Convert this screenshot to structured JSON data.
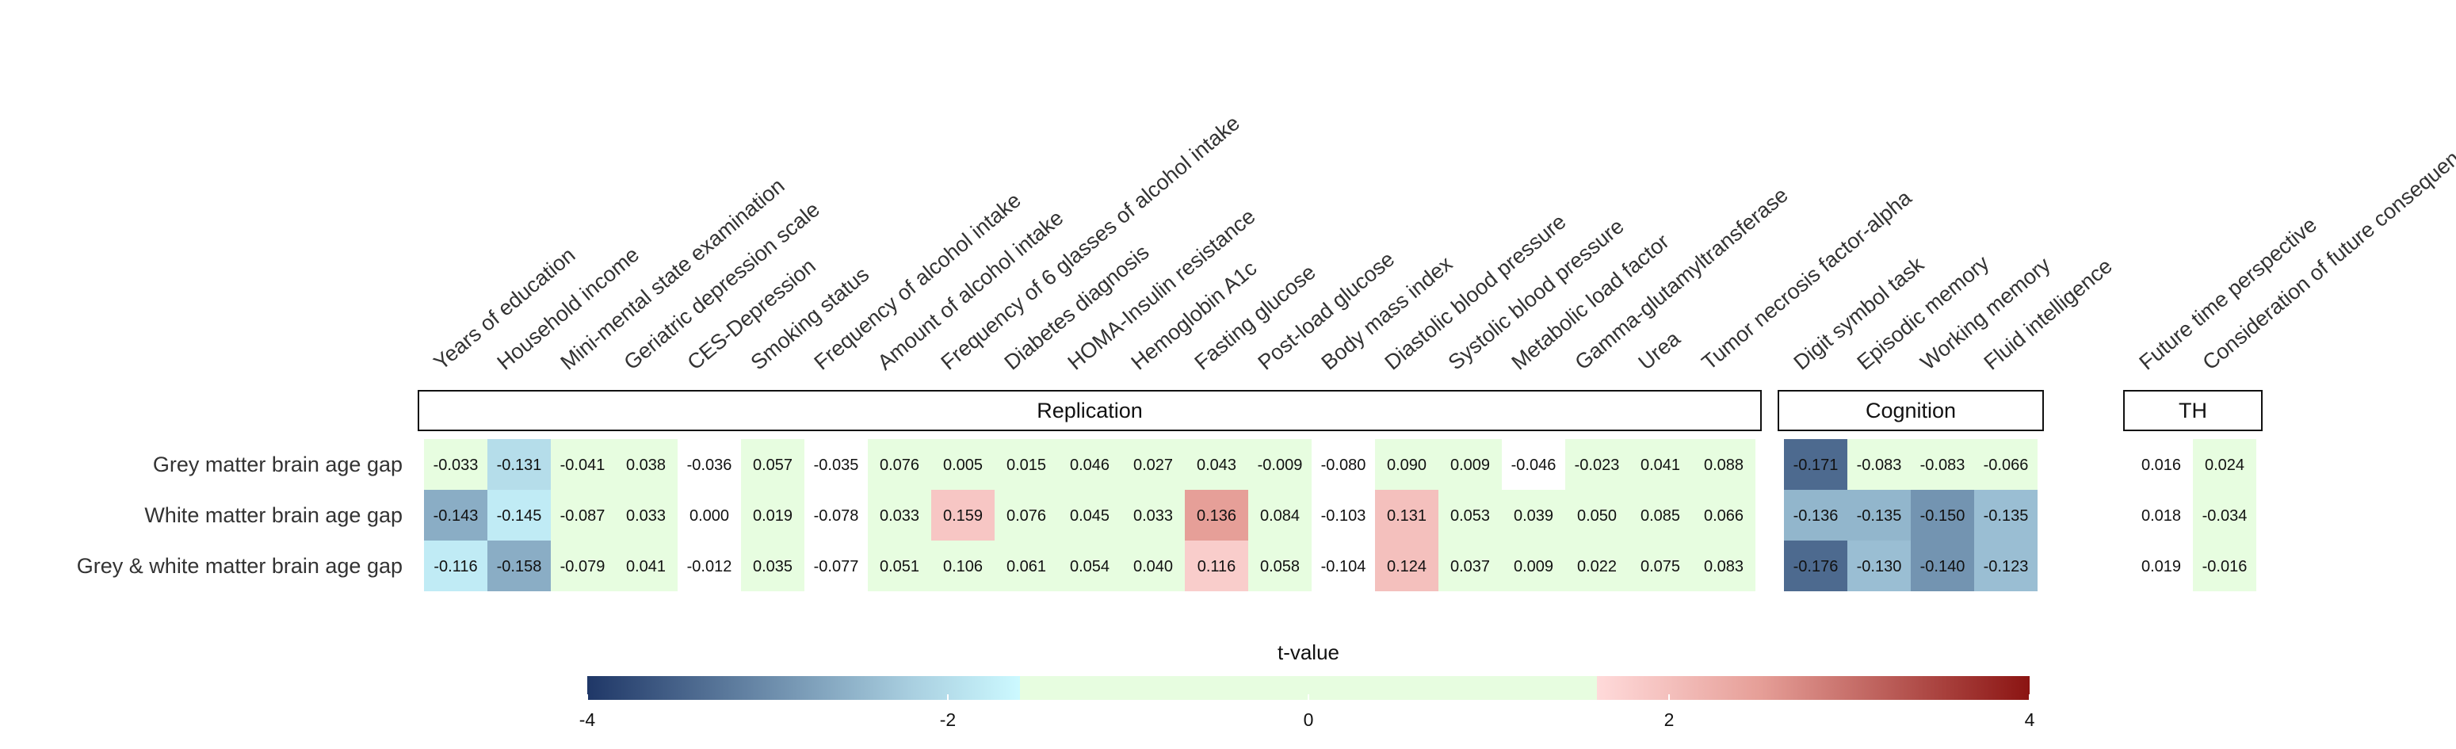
{
  "chart_data": {
    "type": "heatmap",
    "rows": [
      "Grey matter brain age gap",
      "White matter brain age gap",
      "Grey & white matter brain age gap"
    ],
    "groups": [
      {
        "label": "Replication",
        "columns": [
          "Years of education",
          "Household income",
          "Mini-mental state examination",
          "Geriatric depression scale",
          "CES-Depression",
          "Smoking status",
          "Frequency of alcohol intake",
          "Amount of alcohol intake",
          "Frequency of 6 glasses of alcohol intake",
          "Diabetes diagnosis",
          "HOMA-Insulin resistance",
          "Hemoglobin A1c",
          "Fasting glucose",
          "Post-load glucose",
          "Body mass index",
          "Diastolic blood pressure",
          "Systolic blood pressure",
          "Metabolic load factor",
          "Gamma-glutamyltransferase",
          "Urea",
          "Tumor necrosis factor-alpha"
        ],
        "values": [
          [
            "-0.033",
            "-0.131",
            "-0.041",
            "0.038",
            "-0.036",
            "0.057",
            "-0.035",
            "0.076",
            "0.005",
            "0.015",
            "0.046",
            "0.027",
            "0.043",
            "-0.009",
            "-0.080",
            "0.090",
            "0.009",
            "-0.046",
            "-0.023",
            "0.041",
            "0.088"
          ],
          [
            "-0.143",
            "-0.145",
            "-0.087",
            "0.033",
            "0.000",
            "0.019",
            "-0.078",
            "0.033",
            "0.159",
            "0.076",
            "0.045",
            "0.033",
            "0.136",
            "0.084",
            "-0.103",
            "0.131",
            "0.053",
            "0.039",
            "0.050",
            "0.085",
            "0.066"
          ],
          [
            "-0.116",
            "-0.158",
            "-0.079",
            "0.041",
            "-0.012",
            "0.035",
            "-0.077",
            "0.051",
            "0.106",
            "0.061",
            "0.054",
            "0.040",
            "0.116",
            "0.058",
            "-0.104",
            "0.124",
            "0.037",
            "0.009",
            "0.022",
            "0.075",
            "0.083"
          ]
        ],
        "t_values": [
          [
            0.9,
            -2.0,
            0.9,
            0.9,
            0.0,
            0.9,
            0.0,
            0.9,
            0.9,
            0.9,
            0.9,
            0.9,
            0.9,
            0.9,
            0.0,
            0.9,
            0.9,
            0.0,
            0.9,
            0.9,
            0.9
          ],
          [
            -2.6,
            -1.8,
            0.9,
            0.9,
            0.0,
            0.9,
            0.0,
            0.9,
            1.9,
            0.9,
            0.9,
            0.9,
            2.5,
            0.9,
            0.0,
            2.0,
            0.9,
            0.9,
            0.9,
            0.9,
            0.9
          ],
          [
            -1.8,
            -2.6,
            0.9,
            0.9,
            0.0,
            0.9,
            0.0,
            0.9,
            0.9,
            0.9,
            0.9,
            0.9,
            1.8,
            0.9,
            0.0,
            2.0,
            0.9,
            0.9,
            0.9,
            0.9,
            0.9
          ]
        ]
      },
      {
        "label": "Cognition",
        "columns": [
          "Digit symbol task",
          "Episodic memory",
          "Working memory",
          "Fluid intelligence"
        ],
        "values": [
          [
            "-0.171",
            "-0.083",
            "-0.083",
            "-0.066"
          ],
          [
            "-0.136",
            "-0.135",
            "-0.150",
            "-0.135"
          ],
          [
            "-0.176",
            "-0.130",
            "-0.140",
            "-0.123"
          ]
        ],
        "t_values": [
          [
            -3.4,
            0.9,
            0.9,
            0.9
          ],
          [
            -2.5,
            -2.5,
            -2.9,
            -2.4
          ],
          [
            -3.4,
            -2.4,
            -2.9,
            -2.4
          ]
        ]
      },
      {
        "label": "TH",
        "columns": [
          "Future time perspective",
          "Consideration of future consequences"
        ],
        "values": [
          [
            "0.016",
            "0.024"
          ],
          [
            "0.018",
            "-0.034"
          ],
          [
            "0.019",
            "-0.016"
          ]
        ],
        "t_values": [
          [
            0.0,
            0.9
          ],
          [
            0.0,
            0.9
          ],
          [
            0.0,
            0.9
          ]
        ]
      }
    ],
    "colorbar": {
      "title": "t-value",
      "range": [
        -4,
        4
      ],
      "ticks": [
        "-4",
        "-2",
        "0",
        "2",
        "4"
      ],
      "stops": [
        {
          "t": -4,
          "color": "#1f3767"
        },
        {
          "t": -2.2,
          "color": "#a9cfe0"
        },
        {
          "t": -1.6,
          "color": "#ccf9ff"
        },
        {
          "t": -1.6,
          "color": "#e7fde0"
        },
        {
          "t": 1.6,
          "color": "#e7fde0"
        },
        {
          "t": 1.6,
          "color": "#ffdada"
        },
        {
          "t": 2.5,
          "color": "#e69f98"
        },
        {
          "t": 4,
          "color": "#8b1412"
        }
      ]
    }
  }
}
